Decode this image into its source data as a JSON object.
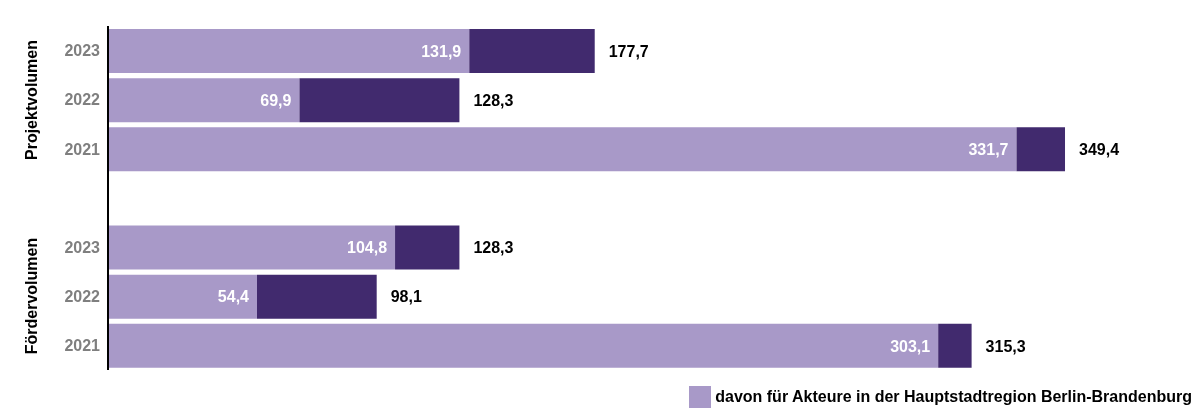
{
  "chart_data": {
    "type": "bar",
    "orientation": "horizontal",
    "stacked": true,
    "categories": [
      "2023",
      "2022",
      "2021",
      null,
      "2023",
      "2022",
      "2021"
    ],
    "series": [
      {
        "name": "davon für Akteure in der Hauptstadtregion Berlin-Brandenburg",
        "color": "#a899c8",
        "values": [
          131.9,
          69.9,
          331.7,
          null,
          104.8,
          54.4,
          303.1
        ],
        "value_labels": [
          "131,9",
          "69,9",
          "331,7",
          null,
          "104,8",
          "54,4",
          "303,1"
        ]
      },
      {
        "color": "#412a6e",
        "values": [
          45.8,
          58.4,
          17.7,
          null,
          23.5,
          43.7,
          12.2
        ]
      }
    ],
    "totals": [
      "177,7",
      "128,3",
      "349,4",
      null,
      "128,3",
      "98,1",
      "315,3"
    ],
    "annotations": [
      "Projektvolumen",
      "Fördervolumen"
    ],
    "legend": "bottom right",
    "tick_labels": "y"
  }
}
